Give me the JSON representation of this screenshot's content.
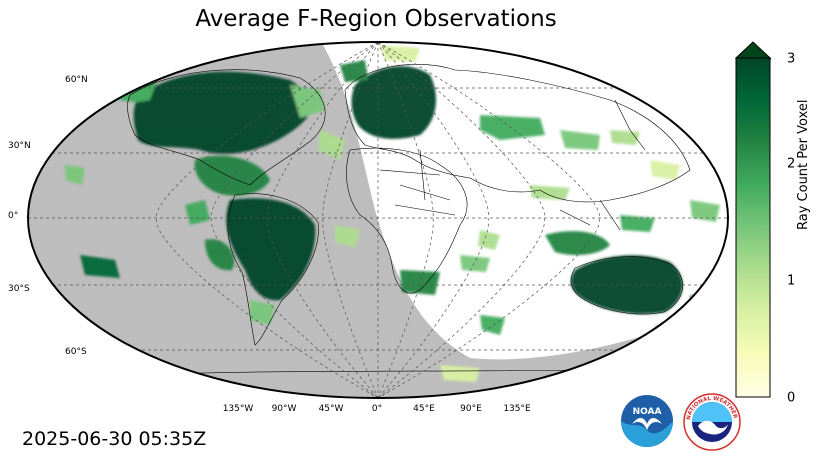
{
  "map": {
    "title": "Average F-Region Observations",
    "timestamp": "2025-06-30 05:35Z",
    "projection": "robinson",
    "night_side_color": "#bdbdbd",
    "lat_labels": [
      "60°N",
      "30°N",
      "0°",
      "30°S",
      "60°S"
    ],
    "lon_labels": [
      "135°W",
      "90°W",
      "45°W",
      "0°",
      "45°E",
      "90°E",
      "135°E"
    ]
  },
  "colorbar": {
    "label": "Ray Count Per Voxel",
    "ticks": [
      "0",
      "1",
      "2",
      "3"
    ],
    "min": 0,
    "max": 3,
    "extend": "max",
    "colormap": "YlGn",
    "colors": [
      "#ffffe5",
      "#f7fcb9",
      "#d9f0a3",
      "#addd8e",
      "#78c679",
      "#41ab5d",
      "#238443",
      "#006837",
      "#004529"
    ]
  },
  "logos": {
    "noaa_text": "NOAA",
    "nws_text": "NATIONAL WEATHER SERVICE"
  }
}
